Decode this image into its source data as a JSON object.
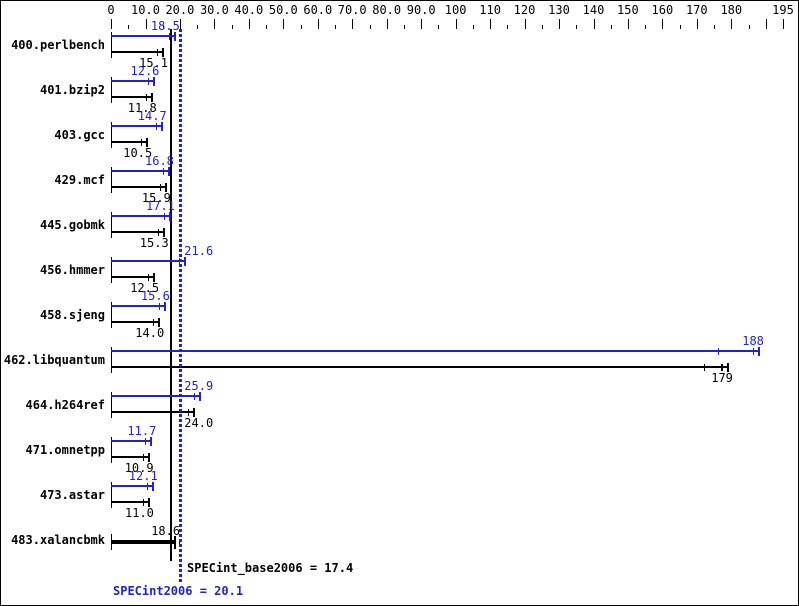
{
  "chart_data": {
    "type": "bar",
    "orientation": "horizontal",
    "description": "SPEC CPU2006 integer speed result chart; each benchmark shows a blue peak bar (value label above) and a black base bar (value label below)",
    "axis": {
      "min": 0,
      "max": 195,
      "minor_step": 5,
      "major_step": 10,
      "position": "top",
      "ticks": [
        {
          "v": 0,
          "label": "0"
        },
        {
          "v": 10,
          "label": "10.0"
        },
        {
          "v": 20,
          "label": "20.0"
        },
        {
          "v": 30,
          "label": "30.0"
        },
        {
          "v": 40,
          "label": "40.0"
        },
        {
          "v": 50,
          "label": "50.0"
        },
        {
          "v": 60,
          "label": "60.0"
        },
        {
          "v": 70,
          "label": "70.0"
        },
        {
          "v": 80,
          "label": "80.0"
        },
        {
          "v": 90,
          "label": "90.0"
        },
        {
          "v": 100,
          "label": "100"
        },
        {
          "v": 110,
          "label": "110"
        },
        {
          "v": 120,
          "label": "120"
        },
        {
          "v": 130,
          "label": "130"
        },
        {
          "v": 140,
          "label": "140"
        },
        {
          "v": 150,
          "label": "150"
        },
        {
          "v": 160,
          "label": "160"
        },
        {
          "v": 170,
          "label": "170"
        },
        {
          "v": 180,
          "label": "180"
        },
        {
          "v": 190,
          "label": ""
        },
        {
          "v": 195,
          "label": "195"
        }
      ]
    },
    "benchmarks": [
      {
        "name": "400.perlbench",
        "peak": 18.5,
        "peak_label": "18.5",
        "base": 15.1,
        "base_label": "15.1"
      },
      {
        "name": "401.bzip2",
        "peak": 12.6,
        "peak_label": "12.6",
        "base": 11.8,
        "base_label": "11.8"
      },
      {
        "name": "403.gcc",
        "peak": 14.7,
        "peak_label": "14.7",
        "base": 10.5,
        "base_label": "10.5"
      },
      {
        "name": "429.mcf",
        "peak": 16.8,
        "peak_label": "16.8",
        "base": 15.9,
        "base_label": "15.9"
      },
      {
        "name": "445.gobmk",
        "peak": 17.1,
        "peak_label": "17.1",
        "base": 15.3,
        "base_label": "15.3"
      },
      {
        "name": "456.hmmer",
        "peak": 21.6,
        "peak_label": "21.6",
        "base": 12.5,
        "base_label": "12.5",
        "peak_label_side": "right"
      },
      {
        "name": "458.sjeng",
        "peak": 15.6,
        "peak_label": "15.6",
        "base": 14.0,
        "base_label": "14.0"
      },
      {
        "name": "462.libquantum",
        "peak": 188,
        "peak_label": "188",
        "base": 179,
        "base_label": "179",
        "peak_run_marks": [
          176
        ],
        "base_run_marks": [
          172,
          177
        ]
      },
      {
        "name": "464.h264ref",
        "peak": 25.9,
        "peak_label": "25.9",
        "base": 24.0,
        "base_label": "24.0",
        "peak_label_side": "right",
        "base_label_side": "right"
      },
      {
        "name": "471.omnetpp",
        "peak": 11.7,
        "peak_label": "11.7",
        "base": 10.9,
        "base_label": "10.9"
      },
      {
        "name": "473.astar",
        "peak": 12.1,
        "peak_label": "12.1",
        "base": 11.0,
        "base_label": "11.0"
      },
      {
        "name": "483.xalancbmk",
        "peak": null,
        "base": 18.6,
        "base_label": "18.6",
        "single": true,
        "base_run_marks": [
          19.6
        ]
      }
    ],
    "summary": {
      "base_text": "SPECint_base2006 = 17.4",
      "base_value": 17.4,
      "peak_text": "SPECint2006 = 20.1",
      "peak_value": 20.1
    },
    "colors": {
      "peak_blue": "#2222c8",
      "base_black": "#000000",
      "background": "#ffffff"
    }
  }
}
